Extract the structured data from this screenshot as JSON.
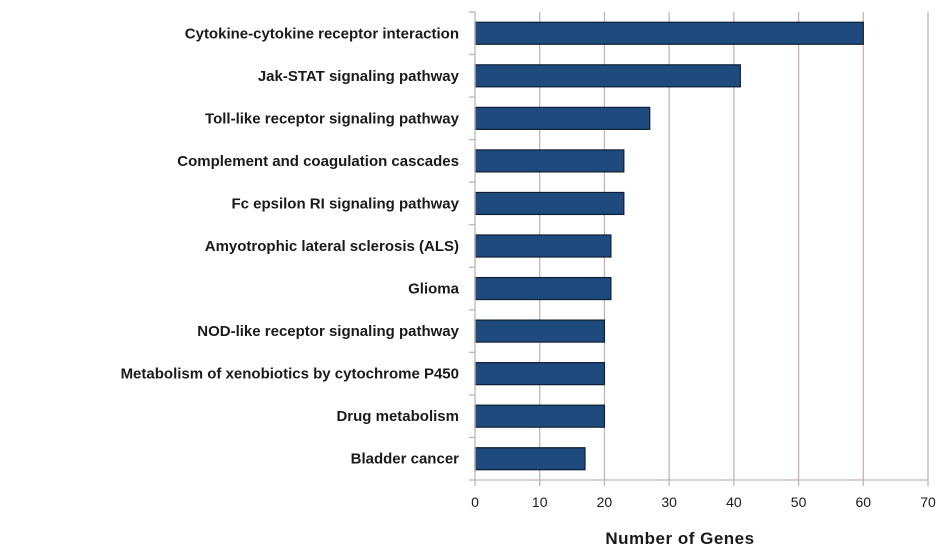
{
  "chart_data": {
    "type": "bar",
    "orientation": "horizontal",
    "categories": [
      "Cytokine-cytokine receptor interaction",
      "Jak-STAT signaling pathway",
      "Toll-like receptor signaling pathway",
      "Complement and coagulation cascades",
      "Fc epsilon RI signaling pathway",
      "Amyotrophic lateral sclerosis (ALS)",
      "Glioma",
      "NOD-like receptor signaling pathway",
      "Metabolism of xenobiotics by cytochrome P450",
      "Drug metabolism",
      "Bladder cancer"
    ],
    "values": [
      60,
      41,
      27,
      23,
      23,
      21,
      21,
      20,
      20,
      20,
      17
    ],
    "xlabel": "Number of Genes",
    "ylabel": "",
    "title": "",
    "xlim": [
      0,
      70
    ],
    "xticks": [
      "0",
      "10",
      "20",
      "30",
      "40",
      "50",
      "60",
      "70"
    ],
    "grid": "vertical",
    "bar_color": "#1e4a7e",
    "bar_edge_color": "#0d1f33",
    "grid_color": "#c4b4b4"
  }
}
